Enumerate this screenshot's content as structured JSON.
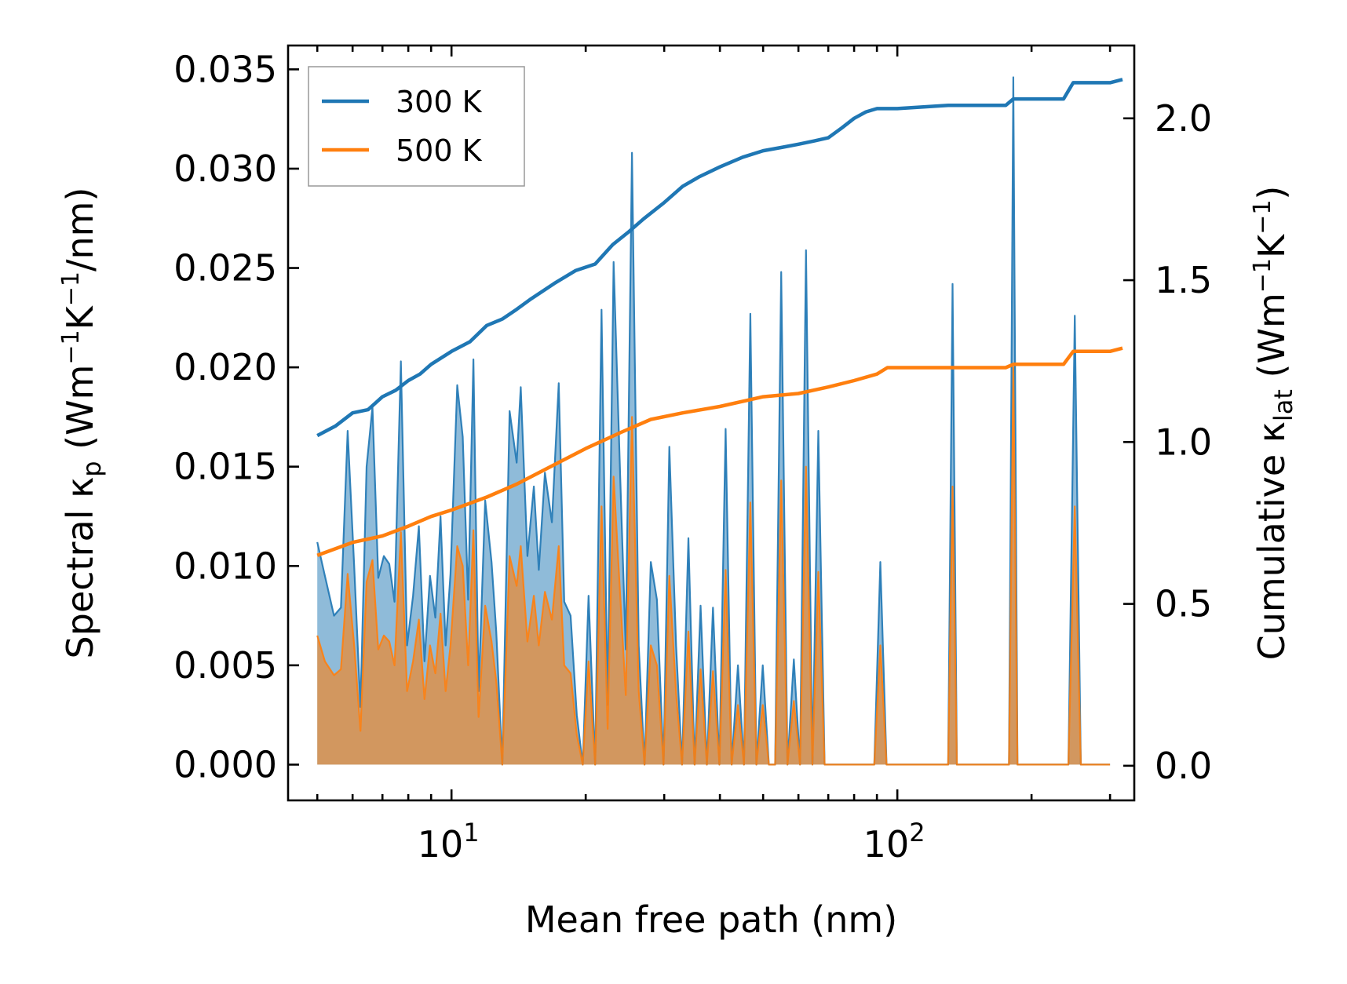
{
  "chart_data": {
    "type": "line",
    "x_scale": "log",
    "xlabel": "Mean free path (nm)",
    "ylabel_left": {
      "main": "Spectral κ",
      "sub": "p",
      "unit_pre": " (Wm",
      "sup1": "−1",
      "unit_mid": "K",
      "sup2": "−1",
      "unit_post": "/nm)"
    },
    "ylabel_right": {
      "main": "Cumulative κ",
      "sub": "lat",
      "unit_pre": " (Wm",
      "sup1": "−1",
      "unit_mid": "K",
      "sup2": "−1",
      "unit_post": ")"
    },
    "xlim": [
      4.3,
      340
    ],
    "ylim_left": [
      -0.0018,
      0.0362
    ],
    "ylim_right": [
      -0.107,
      2.225
    ],
    "x_ticks": [
      {
        "value": 10,
        "base": "10",
        "exp": "1"
      },
      {
        "value": 100,
        "base": "10",
        "exp": "2"
      }
    ],
    "yticks_left": [
      "0.000",
      "0.005",
      "0.010",
      "0.015",
      "0.020",
      "0.025",
      "0.030",
      "0.035"
    ],
    "yticks_right": [
      "0.0",
      "0.5",
      "1.0",
      "1.5",
      "2.0"
    ],
    "legend": {
      "location": "upper-left",
      "entries": [
        {
          "label": "300 K",
          "color": "#1f77b4"
        },
        {
          "label": "500 K",
          "color": "#ff7f0e"
        }
      ]
    },
    "spectral": {
      "x": [
        5.0,
        5.2,
        5.45,
        5.65,
        5.85,
        6.05,
        6.25,
        6.45,
        6.65,
        6.85,
        7.05,
        7.25,
        7.45,
        7.7,
        7.95,
        8.2,
        8.45,
        8.7,
        8.95,
        9.2,
        9.45,
        9.7,
        9.95,
        10.3,
        10.6,
        10.9,
        11.2,
        11.5,
        11.9,
        12.3,
        12.6,
        13.0,
        13.5,
        14.0,
        14.3,
        14.8,
        15.3,
        15.7,
        16.2,
        16.8,
        17.4,
        17.9,
        18.5,
        19.1,
        19.7,
        20.3,
        21.0,
        21.7,
        22.4,
        23.1,
        23.9,
        24.6,
        25.4,
        26.3,
        27.1,
        28.0,
        28.9,
        29.9,
        30.8,
        31.9,
        32.9,
        34.0,
        35.1,
        36.2,
        37.4,
        38.6,
        39.9,
        41.2,
        42.5,
        43.9,
        45.3,
        46.8,
        48.3,
        49.9,
        51.5,
        53.2,
        54.9,
        56.7,
        58.6,
        60.5,
        62.4,
        64.5,
        66.5,
        68.7,
        70.9,
        73.2,
        75.6,
        78.1,
        80.6,
        83.3,
        86.0,
        88.8,
        91.6,
        94.6,
        130.0,
        133.0,
        136.0,
        178.0,
        182.0,
        186.0,
        236.0,
        242.0,
        250.0,
        258.0,
        300.0,
        306.0,
        312.0
      ],
      "series": [
        {
          "name": "300 K",
          "color": "#1f77b4",
          "values": [
            0.0112,
            0.0095,
            0.0075,
            0.0079,
            0.0168,
            0.01,
            0.0029,
            0.015,
            0.018,
            0.0094,
            0.0105,
            0.0101,
            0.0082,
            0.0203,
            0.006,
            0.0085,
            0.012,
            0.0052,
            0.0095,
            0.0074,
            0.0125,
            0.006,
            0.0096,
            0.0191,
            0.0165,
            0.0083,
            0.0204,
            0.0037,
            0.0133,
            0.0102,
            0.0067,
            0.0,
            0.0178,
            0.0152,
            0.019,
            0.0105,
            0.014,
            0.0098,
            0.0147,
            0.0122,
            0.0192,
            0.0082,
            0.0075,
            0.0025,
            0.0,
            0.0085,
            0.0,
            0.0229,
            0.003,
            0.0253,
            0.0145,
            0.0058,
            0.0308,
            0.006,
            0.0,
            0.0102,
            0.0083,
            0.0,
            0.016,
            0.006,
            0.0,
            0.0114,
            0.0,
            0.008,
            0.0,
            0.0079,
            0.0,
            0.0169,
            0.0,
            0.005,
            0.0,
            0.0227,
            0.0,
            0.005,
            0.0,
            0.0,
            0.0248,
            0.0,
            0.0053,
            0.0,
            0.0259,
            0.0,
            0.0168,
            0.0,
            0.0,
            0.0,
            0.0,
            0.0,
            0.0,
            0.0,
            0.0,
            0.0,
            0.0102,
            0.0,
            0.0,
            0.0242,
            0.0,
            0.0,
            0.0346,
            0.0,
            0.0,
            0.0,
            0.0226,
            0.0,
            0.0
          ]
        },
        {
          "name": "500 K",
          "color": "#ff7f0e",
          "values": [
            0.0065,
            0.0052,
            0.0045,
            0.0048,
            0.0096,
            0.006,
            0.0017,
            0.0092,
            0.0103,
            0.0058,
            0.0065,
            0.0062,
            0.005,
            0.0117,
            0.0037,
            0.0052,
            0.0073,
            0.0033,
            0.006,
            0.0046,
            0.0076,
            0.0037,
            0.006,
            0.011,
            0.01,
            0.005,
            0.0118,
            0.0024,
            0.008,
            0.0062,
            0.0042,
            0.0,
            0.0105,
            0.009,
            0.011,
            0.0062,
            0.0085,
            0.006,
            0.0087,
            0.0073,
            0.011,
            0.005,
            0.0046,
            0.0015,
            0.0,
            0.0052,
            0.0,
            0.013,
            0.0018,
            0.0145,
            0.0085,
            0.0035,
            0.0175,
            0.0037,
            0.0,
            0.006,
            0.005,
            0.0,
            0.0095,
            0.0036,
            0.0,
            0.0067,
            0.0,
            0.0048,
            0.0,
            0.0047,
            0.0,
            0.0098,
            0.0,
            0.003,
            0.0,
            0.0132,
            0.0,
            0.003,
            0.0,
            0.0,
            0.0143,
            0.0,
            0.0032,
            0.0,
            0.015,
            0.0,
            0.0097,
            0.0,
            0.0,
            0.0,
            0.0,
            0.0,
            0.0,
            0.0,
            0.0,
            0.0,
            0.006,
            0.0,
            0.0,
            0.014,
            0.0,
            0.0,
            0.02,
            0.0,
            0.0,
            0.0,
            0.013,
            0.0,
            0.0
          ]
        }
      ]
    },
    "cumulative": {
      "series": [
        {
          "name": "300 K",
          "color": "#1f77b4",
          "x": [
            5.0,
            5.5,
            6.0,
            6.5,
            7.0,
            7.5,
            8.0,
            8.5,
            9.0,
            10.0,
            11.0,
            12.0,
            13.0,
            14.0,
            15.0,
            17.0,
            19.0,
            21.0,
            23.0,
            25.0,
            27.0,
            30.0,
            33.0,
            36.0,
            40.0,
            45.0,
            50.0,
            55.0,
            60.0,
            65.0,
            70.0,
            75.0,
            80.0,
            85.0,
            90.0,
            100.0,
            130.0,
            175.0,
            182.0,
            236.0,
            248.0,
            300.0,
            320.0
          ],
          "values": [
            1.02,
            1.05,
            1.09,
            1.1,
            1.14,
            1.16,
            1.19,
            1.21,
            1.24,
            1.28,
            1.31,
            1.36,
            1.38,
            1.41,
            1.44,
            1.49,
            1.53,
            1.55,
            1.61,
            1.65,
            1.69,
            1.74,
            1.79,
            1.82,
            1.85,
            1.88,
            1.9,
            1.91,
            1.92,
            1.93,
            1.94,
            1.97,
            2.0,
            2.02,
            2.03,
            2.03,
            2.04,
            2.04,
            2.06,
            2.06,
            2.11,
            2.11,
            2.12
          ]
        },
        {
          "name": "500 K",
          "color": "#ff7f0e",
          "x": [
            5.0,
            6.0,
            7.0,
            8.0,
            9.0,
            10.0,
            12.0,
            14.0,
            17.0,
            20.0,
            24.0,
            28.0,
            33.0,
            40.0,
            50.0,
            60.0,
            70.0,
            80.0,
            90.0,
            95.0,
            130.0,
            175.0,
            182.0,
            236.0,
            248.0,
            300.0,
            320.0
          ],
          "values": [
            0.65,
            0.69,
            0.71,
            0.74,
            0.77,
            0.79,
            0.83,
            0.87,
            0.93,
            0.98,
            1.03,
            1.07,
            1.09,
            1.11,
            1.14,
            1.15,
            1.17,
            1.19,
            1.21,
            1.23,
            1.23,
            1.23,
            1.24,
            1.24,
            1.28,
            1.28,
            1.29
          ]
        }
      ]
    }
  }
}
